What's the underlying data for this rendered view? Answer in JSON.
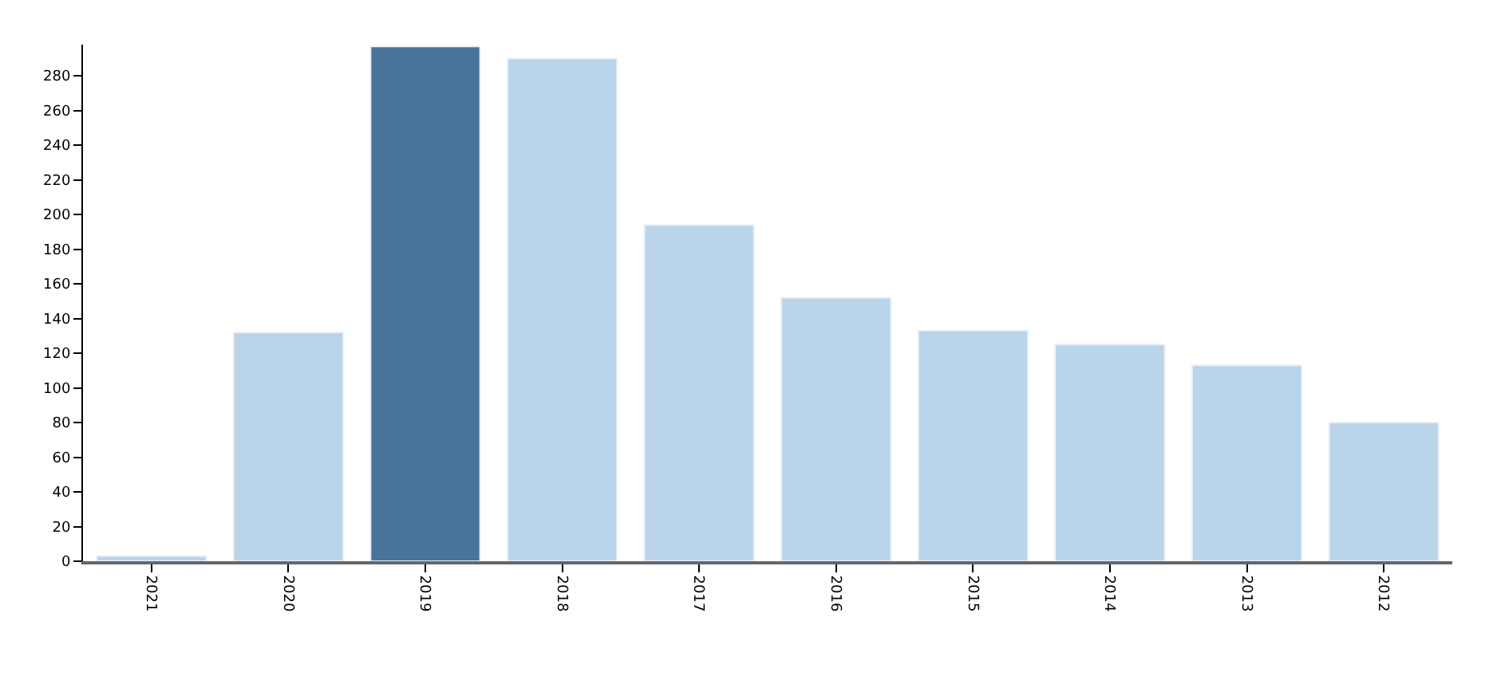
{
  "chart_data": {
    "type": "bar",
    "categories": [
      "2021",
      "2020",
      "2019",
      "2018",
      "2017",
      "2016",
      "2015",
      "2014",
      "2013",
      "2012"
    ],
    "values": [
      3,
      132,
      297,
      290,
      194,
      152,
      133,
      125,
      113,
      80
    ],
    "colors": [
      "#bad4ea",
      "#bad4ea",
      "#4a7399",
      "#bad4ea",
      "#bad4ea",
      "#bad4ea",
      "#bad4ea",
      "#bad4ea",
      "#bad4ea",
      "#bad4ea"
    ],
    "ylim": [
      0,
      298
    ],
    "yticks": [
      0,
      20,
      40,
      60,
      80,
      100,
      120,
      140,
      160,
      180,
      200,
      220,
      240,
      260,
      280
    ],
    "grid": false
  }
}
